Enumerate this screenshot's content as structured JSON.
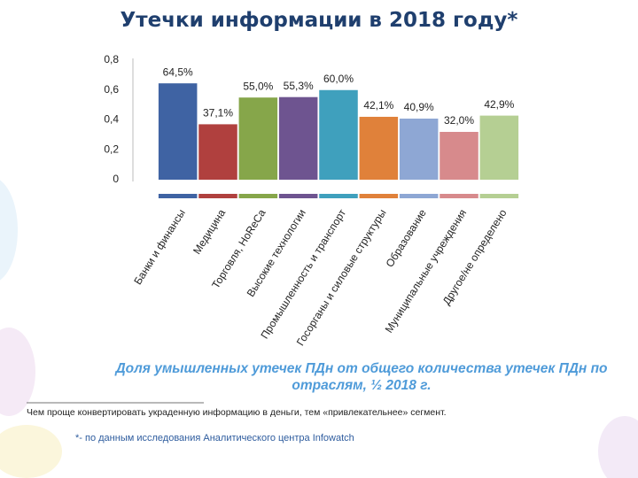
{
  "title": "Утечки информации в 2018 году*",
  "chart_data": {
    "type": "bar",
    "categories": [
      "Банки и финансы",
      "Медицина",
      "Торговля, HoReCa",
      "Высокие технологии",
      "Промышленность и транспорт",
      "Госорганы и силовые структуры",
      "Образование",
      "Муниципальные учреждения",
      "Другое/не определено"
    ],
    "values": [
      0.645,
      0.371,
      0.55,
      0.553,
      0.6,
      0.421,
      0.409,
      0.32,
      0.429
    ],
    "value_labels": [
      "64,5%",
      "37,1%",
      "55,0%",
      "55,3%",
      "60,0%",
      "42,1%",
      "40,9%",
      "32,0%",
      "42,9%"
    ],
    "colors": [
      "#3f63a3",
      "#b0403e",
      "#86a64a",
      "#6e5490",
      "#3fa0bd",
      "#e0813a",
      "#8ea7d4",
      "#d78a8c",
      "#b5cf93"
    ],
    "ylim": [
      0,
      0.8
    ],
    "yticks": [
      0,
      {
        "value": 0.2,
        "label": "0,2"
      },
      {
        "value": 0.4,
        "label": "0,4"
      },
      {
        "value": 0.6,
        "label": "0,6"
      },
      {
        "value": 0.8,
        "label": "0,8"
      }
    ],
    "caption": "Доля умышленных утечек ПДн от общего количества утечек ПДн по отраслям, ½ 2018 г."
  },
  "note": "Чем проще конвертировать украденную информацию в деньги, тем «привлекательнее» сегмент.",
  "footnote": "*- по данным исследования Аналитического центра Infowatch"
}
